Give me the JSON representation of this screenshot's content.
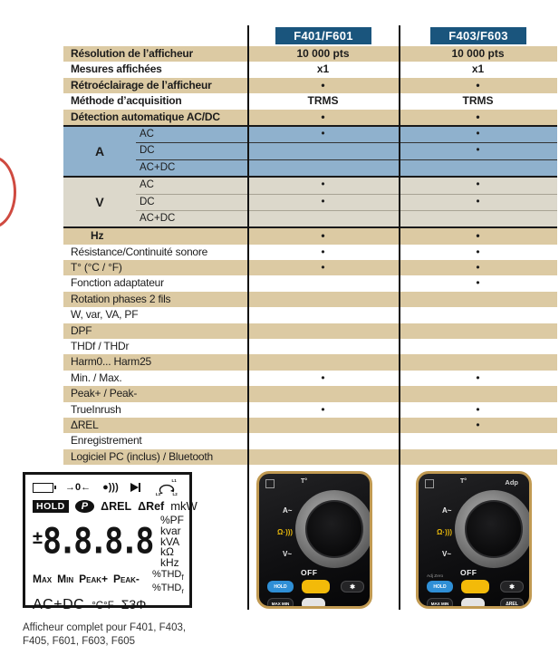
{
  "colors": {
    "header_blue": "#1a557d",
    "row_tan": "#dccaa3",
    "group_blue": "#8fb1cd",
    "group_grey": "#dcd8cb",
    "gold_border": "#c19a52"
  },
  "header": {
    "col1": "F401/F601",
    "col2": "F403/F603"
  },
  "table": {
    "rows": [
      {
        "label": "Résolution de l’afficheur",
        "bold": true,
        "bg": "tan",
        "col1": "10 000 pts",
        "col2": "10 000 pts"
      },
      {
        "label": "Mesures affichées",
        "bold": true,
        "bg": "white",
        "col1": "x1",
        "col2": "x1"
      },
      {
        "label": "Rétroéclairage de l’afficheur",
        "bold": true,
        "bg": "tan",
        "col1": "•",
        "col2": "•"
      },
      {
        "label": "Méthode d’acquisition",
        "bold": true,
        "bg": "white",
        "col1": "TRMS",
        "col2": "TRMS"
      },
      {
        "label": "Détection automatique AC/DC",
        "bold": true,
        "bg": "tan",
        "col1": "•",
        "col2": "•"
      },
      {
        "group": "A",
        "bg": "blue",
        "subrows": [
          {
            "label": "AC",
            "col1": "•",
            "col2": "•"
          },
          {
            "label": "DC",
            "col1": "",
            "col2": "•"
          },
          {
            "label": "AC+DC",
            "col1": "",
            "col2": ""
          }
        ]
      },
      {
        "group": "V",
        "bg": "grey",
        "subrows": [
          {
            "label": "AC",
            "col1": "•",
            "col2": "•"
          },
          {
            "label": "DC",
            "col1": "•",
            "col2": "•"
          },
          {
            "label": "AC+DC",
            "col1": "",
            "col2": ""
          }
        ]
      },
      {
        "label": "Hz",
        "bold": true,
        "indent": true,
        "bg": "tan",
        "col1": "•",
        "col2": "•"
      },
      {
        "label": "Résistance/Continuité sonore",
        "bg": "white",
        "col1": "•",
        "col2": "•"
      },
      {
        "label": "T° (°C / °F)",
        "bg": "tan",
        "col1": "•",
        "col2": "•"
      },
      {
        "label": "Fonction adaptateur",
        "bg": "white",
        "col1": "",
        "col2": "•"
      },
      {
        "label": "Rotation phases 2 fils",
        "bg": "tan",
        "col1": "",
        "col2": ""
      },
      {
        "label": "W, var, VA, PF",
        "bg": "white",
        "col1": "",
        "col2": ""
      },
      {
        "label": "DPF",
        "bg": "tan",
        "col1": "",
        "col2": ""
      },
      {
        "label": "THDf / THDr",
        "bg": "white",
        "col1": "",
        "col2": ""
      },
      {
        "label": "Harm0... Harm25",
        "bg": "tan",
        "col1": "",
        "col2": ""
      },
      {
        "label": "Min. / Max.",
        "bg": "white",
        "col1": "•",
        "col2": "•"
      },
      {
        "label": "Peak+ / Peak-",
        "bg": "tan",
        "col1": "",
        "col2": ""
      },
      {
        "label": "TrueInrush",
        "bg": "white",
        "col1": "•",
        "col2": "•"
      },
      {
        "label": "ΔREL",
        "bg": "tan",
        "col1": "",
        "col2": "•"
      },
      {
        "label": "Enregistrement",
        "bg": "white",
        "col1": "",
        "col2": ""
      },
      {
        "label": "Logiciel PC (inclus) / Bluetooth",
        "bg": "tan",
        "col1": "",
        "col2": ""
      }
    ]
  },
  "lcd": {
    "zero_glyph": "→0←",
    "continuity_glyph": "●)))",
    "rot": [
      "L1",
      "L2",
      "L3"
    ],
    "hold": "HOLD",
    "p": "P",
    "delta_rel": "ΔREL",
    "delta_ref": "ΔRef",
    "mkw": "mkW",
    "sign": "±",
    "digits": "8.8.8.8",
    "units": [
      "%PF",
      "kvar",
      "kVA",
      "kΩ",
      "kHz"
    ],
    "minmax": [
      "Max",
      "Min",
      "Peak+",
      "Peak-"
    ],
    "thd": [
      [
        "%THD",
        "f"
      ],
      [
        "%THD",
        "r"
      ]
    ],
    "bottom": {
      "acdc": "AC+DC",
      "cf": "°C°F",
      "sigma": "Σ3Φ"
    }
  },
  "caption": "Afficheur complet pour F401, F403,\nF405, F601, F603, F605",
  "products": [
    {
      "top_label": "T°",
      "adp_label": "",
      "a_label": "A~",
      "ohm_label": "Ω·)))",
      "v_label": "V~",
      "off_label": "OFF",
      "adj_zero": "",
      "buttons": {
        "hold": "HOLD",
        "yellow": "",
        "star": "✱",
        "maxmin": "MAX MIN",
        "white": "",
        "rel": ""
      }
    },
    {
      "top_label": "T°",
      "adp_label": "Adp",
      "a_label": "A~",
      "ohm_label": "Ω·)))",
      "v_label": "V~",
      "off_label": "OFF",
      "adj_zero": "Adj Zero",
      "buttons": {
        "hold": "HOLD",
        "yellow": "",
        "star": "✱",
        "maxmin": "MAX MIN",
        "white": "",
        "rel": "ΔREL"
      }
    }
  ]
}
